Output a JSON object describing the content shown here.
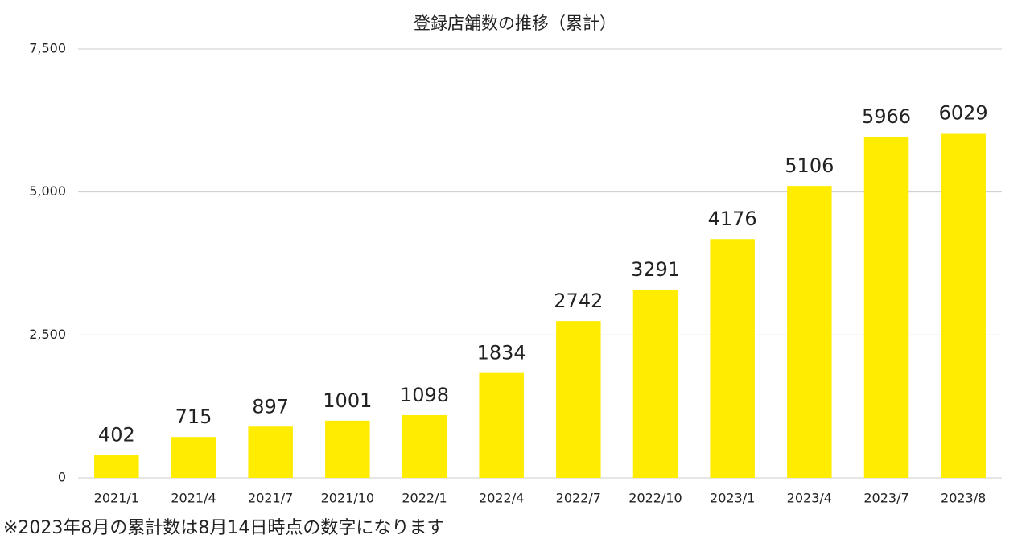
{
  "chart_data": {
    "type": "bar",
    "title": "登録店舗数の推移（累計）",
    "categories": [
      "2021/1",
      "2021/4",
      "2021/7",
      "2021/10",
      "2022/1",
      "2022/4",
      "2022/7",
      "2022/10",
      "2023/1",
      "2023/4",
      "2023/7",
      "2023/8"
    ],
    "values": [
      402,
      715,
      897,
      1001,
      1098,
      1834,
      2742,
      3291,
      4176,
      5106,
      5966,
      6029
    ],
    "color": "#ffec00",
    "ylim": [
      0,
      7500
    ],
    "yticks": [
      0,
      {
        "value": 2500,
        "label": "2,500"
      },
      {
        "value": 5000,
        "label": "5,000"
      },
      {
        "value": 7500,
        "label": "7,500"
      }
    ],
    "grid": true,
    "note": "※2023年8月の累計数は8月14日時点の数字になります"
  }
}
